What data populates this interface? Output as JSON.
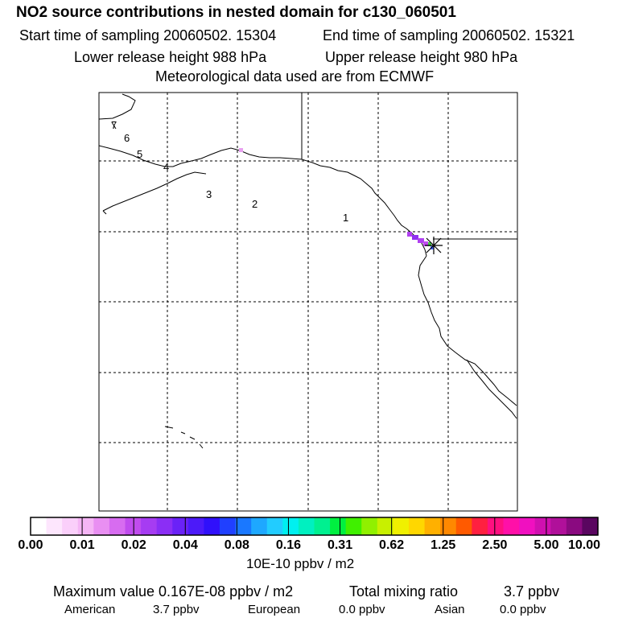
{
  "header": {
    "title": "NO2 source contributions in nested domain for c130_060501",
    "start_time": "Start time of sampling 20060502. 15304",
    "end_time": "End time of sampling 20060502. 15321",
    "lower_release": "Lower release height  988 hPa",
    "upper_release": "Upper release height  980 hPa",
    "meteo": "Meteorological data used are from ECMWF"
  },
  "chart_data": {
    "type": "heatmap",
    "title": "NO2 source contributions in nested domain for c130_060501",
    "day_labels": [
      "1",
      "2",
      "3",
      "4",
      "5",
      "6",
      "7"
    ],
    "colorbar": {
      "ticks": [
        "0.00",
        "0.01",
        "0.02",
        "0.04",
        "0.08",
        "0.16",
        "0.31",
        "0.62",
        "1.25",
        "2.50",
        "5.00",
        "10.00"
      ],
      "colors": [
        "#ffffff",
        "#fde6fd",
        "#facffa",
        "#f5b5f5",
        "#e98ff2",
        "#d76cf0",
        "#c04cee",
        "#a63cf2",
        "#8b2ef5",
        "#6a22f7",
        "#4c1af9",
        "#3010fb",
        "#2040ff",
        "#1a78ff",
        "#1ea8ff",
        "#22ccff",
        "#00f0f0",
        "#00f0c0",
        "#00f090",
        "#00f040",
        "#40f000",
        "#90f000",
        "#c8f000",
        "#f0f000",
        "#ffd700",
        "#ffb000",
        "#ff8800",
        "#ff5a00",
        "#ff2040",
        "#ff1080",
        "#ff10a8",
        "#f010c0",
        "#d010b0",
        "#b0109a",
        "#8a0a80",
        "#5a0660"
      ],
      "unit_label": "10E-10 ppbv / m2"
    },
    "plume_colors": {
      "low": "#e8a0f0",
      "mid": "#b040f0",
      "high": "#40d040",
      "peak": "#4060ff"
    }
  },
  "footer": {
    "max_value": "Maximum value  0.167E-08 ppbv / m2",
    "total_label": "Total mixing ratio",
    "total_value": "3.7 ppbv",
    "american_label": "American",
    "american_value": "3.7 ppbv",
    "european_label": "European",
    "european_value": "0.0 ppbv",
    "asian_label": "Asian",
    "asian_value": "0.0 ppbv"
  }
}
